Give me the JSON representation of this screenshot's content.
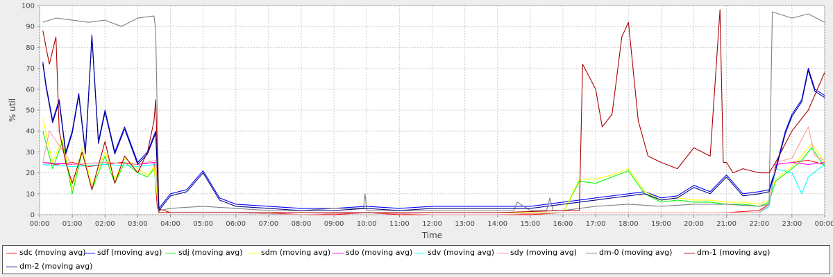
{
  "chart_data": {
    "type": "line",
    "title": "",
    "xlabel": "Time",
    "ylabel": "% util",
    "xlim": [
      0,
      24
    ],
    "ylim": [
      0,
      100
    ],
    "yticks": [
      0,
      10,
      20,
      30,
      40,
      50,
      60,
      70,
      80,
      90,
      100
    ],
    "xticks": [
      "00:00",
      "01:00",
      "02:00",
      "03:00",
      "04:00",
      "05:00",
      "06:00",
      "07:00",
      "08:00",
      "09:00",
      "10:00",
      "11:00",
      "12:00",
      "13:00",
      "14:00",
      "15:00",
      "16:00",
      "17:00",
      "18:00",
      "19:00",
      "20:00",
      "21:00",
      "22:00",
      "23:00",
      "00:00"
    ],
    "grid": true,
    "legend_position": "bottom",
    "series": [
      {
        "name": "sdc (moving avg)",
        "color": "#ff0000",
        "x": [
          0.1,
          0.5,
          1,
          1.5,
          2,
          2.5,
          3,
          3.5,
          3.6,
          4,
          5,
          6,
          7,
          8,
          9,
          10,
          11,
          12,
          13,
          14,
          15,
          16,
          16.5,
          17,
          18,
          19,
          20,
          21,
          22,
          22.3,
          22.5,
          23,
          23.5,
          24
        ],
        "y": [
          25,
          24,
          25,
          23,
          24,
          25,
          24,
          25,
          3,
          1,
          1,
          1,
          1,
          0,
          0,
          1,
          0,
          0,
          0,
          0,
          0,
          1,
          1,
          1,
          1,
          1,
          1,
          1,
          2,
          5,
          24,
          25,
          26,
          24
        ]
      },
      {
        "name": "sdf (moving avg)",
        "color": "#0000ff",
        "x": [
          0.1,
          0.2,
          0.4,
          0.6,
          0.8,
          1,
          1.2,
          1.4,
          1.6,
          1.8,
          2,
          2.3,
          2.6,
          3,
          3.3,
          3.55,
          3.65,
          4,
          4.5,
          5,
          5.5,
          6,
          7,
          8,
          9,
          10,
          11,
          12,
          13,
          14,
          15,
          16,
          16.5,
          17,
          17.5,
          18,
          18.5,
          19,
          19.5,
          20,
          20.5,
          21,
          21.5,
          22,
          22.3,
          22.5,
          22.8,
          23,
          23.3,
          23.5,
          23.7,
          24
        ],
        "y": [
          73,
          62,
          45,
          55,
          30,
          40,
          58,
          30,
          86,
          35,
          50,
          30,
          42,
          25,
          30,
          40,
          3,
          10,
          12,
          21,
          8,
          5,
          4,
          3,
          3,
          4,
          3,
          4,
          4,
          4,
          4,
          6,
          7,
          8,
          9,
          10,
          11,
          8,
          9,
          14,
          11,
          19,
          10,
          11,
          12,
          22,
          40,
          48,
          55,
          70,
          60,
          57
        ]
      },
      {
        "name": "sdj (moving avg)",
        "color": "#00ff00",
        "x": [
          0.1,
          0.4,
          0.7,
          1,
          1.3,
          1.6,
          2,
          2.3,
          2.6,
          3,
          3.3,
          3.5,
          3.65,
          4,
          5,
          6,
          7,
          8,
          9,
          10,
          11,
          12,
          13,
          14,
          15,
          16,
          16.5,
          17,
          17.5,
          18,
          18.5,
          19,
          19.5,
          20,
          20.5,
          21,
          21.5,
          22,
          22.3,
          22.5,
          23,
          23.3,
          23.6,
          24
        ],
        "y": [
          40,
          22,
          35,
          10,
          30,
          12,
          28,
          15,
          25,
          20,
          18,
          22,
          1,
          1,
          1,
          1,
          1,
          1,
          1,
          1,
          1,
          1,
          1,
          1,
          1,
          1,
          16,
          15,
          18,
          21,
          10,
          6,
          7,
          6,
          6,
          5,
          5,
          4,
          6,
          16,
          22,
          26,
          32,
          23
        ]
      },
      {
        "name": "sdm (moving avg)",
        "color": "#ffff00",
        "x": [
          0.1,
          0.4,
          0.7,
          1,
          1.3,
          1.6,
          2,
          2.3,
          2.6,
          3,
          3.3,
          3.5,
          3.65,
          4,
          5,
          6,
          7,
          8,
          9,
          10,
          11,
          12,
          13,
          14,
          15,
          16,
          16.5,
          17,
          17.5,
          18,
          18.5,
          19,
          19.5,
          20,
          20.5,
          21,
          21.5,
          22,
          22.3,
          22.5,
          23,
          23.3,
          23.6,
          24
        ],
        "y": [
          46,
          25,
          36,
          12,
          32,
          14,
          30,
          17,
          27,
          22,
          19,
          23,
          1,
          1,
          1,
          1,
          1,
          1,
          1,
          1,
          1,
          1,
          1,
          1,
          1,
          1,
          17,
          17,
          19,
          22,
          11,
          7,
          8,
          7,
          7,
          6,
          6,
          5,
          7,
          17,
          23,
          28,
          34,
          25
        ]
      },
      {
        "name": "sdo (moving avg)",
        "color": "#ff00ff",
        "x": [
          0.1,
          1,
          2,
          3,
          3.55,
          3.65,
          4,
          6,
          8,
          10,
          12,
          14,
          16,
          17,
          18,
          19,
          20,
          21,
          22,
          22.3,
          22.5,
          23,
          23.5,
          24
        ],
        "y": [
          25,
          24,
          25,
          24,
          25,
          1,
          1,
          1,
          0,
          1,
          0,
          0,
          1,
          1,
          1,
          1,
          1,
          1,
          1,
          4,
          24,
          25,
          24,
          25
        ]
      },
      {
        "name": "sdv (moving avg)",
        "color": "#00ffff",
        "x": [
          0.1,
          1,
          2,
          3,
          3.55,
          3.65,
          4,
          6,
          8,
          10,
          12,
          14,
          16,
          17,
          18,
          19,
          20,
          21,
          22,
          22.3,
          22.5,
          23,
          23.3,
          23.5,
          24
        ],
        "y": [
          24,
          23,
          24,
          23,
          24,
          1,
          1,
          1,
          0,
          1,
          0,
          0,
          1,
          1,
          1,
          1,
          1,
          1,
          1,
          4,
          22,
          20,
          10,
          18,
          24
        ]
      },
      {
        "name": "sdy (moving avg)",
        "color": "#ff9999",
        "x": [
          0.1,
          0.3,
          1,
          2,
          3,
          3.55,
          3.65,
          4,
          6,
          8,
          10,
          12,
          14,
          16,
          17,
          18,
          19,
          20,
          21,
          22,
          22.3,
          22.5,
          23,
          23.5,
          23.7,
          24
        ],
        "y": [
          25,
          40,
          24,
          25,
          24,
          26,
          1,
          1,
          1,
          0,
          1,
          0,
          0,
          1,
          1,
          1,
          1,
          1,
          1,
          1,
          5,
          25,
          27,
          42,
          28,
          26
        ]
      },
      {
        "name": "dm-0 (moving avg)",
        "color": "#808080",
        "x": [
          0.1,
          0.5,
          1,
          1.5,
          2,
          2.5,
          3,
          3.5,
          3.55,
          3.65,
          4,
          5,
          6,
          7,
          8,
          9,
          9.9,
          9.95,
          10,
          11,
          12,
          13,
          14,
          14.5,
          14.6,
          15,
          15.5,
          15.6,
          15.7,
          16,
          16.5,
          17,
          18,
          19,
          20,
          21,
          22,
          22.3,
          22.4,
          23,
          23.5,
          24
        ],
        "y": [
          92,
          94,
          93,
          92,
          93,
          90,
          94,
          95,
          88,
          2,
          3,
          4,
          3,
          2,
          2,
          3,
          3,
          10,
          2,
          2,
          2,
          2,
          2,
          2,
          6,
          2,
          2,
          8,
          2,
          2,
          3,
          4,
          5,
          4,
          5,
          5,
          4,
          5,
          97,
          94,
          96,
          92
        ]
      },
      {
        "name": "dm-1 (moving avg)",
        "color": "#aa0000",
        "x": [
          0.1,
          0.3,
          0.5,
          0.6,
          0.8,
          1,
          1.3,
          1.6,
          2,
          2.3,
          2.6,
          3,
          3.3,
          3.5,
          3.55,
          3.65,
          4,
          6,
          8,
          10,
          12,
          14,
          16,
          16.5,
          16.6,
          17,
          17.2,
          17.5,
          17.8,
          18,
          18.3,
          18.6,
          19,
          19.5,
          20,
          20.5,
          20.8,
          20.9,
          21,
          21.2,
          21.5,
          22,
          22.3,
          22.5,
          23,
          23.5,
          24
        ],
        "y": [
          88,
          72,
          85,
          40,
          25,
          15,
          30,
          12,
          35,
          15,
          28,
          20,
          30,
          45,
          55,
          1,
          1,
          1,
          1,
          1,
          1,
          1,
          2,
          2,
          72,
          60,
          42,
          48,
          85,
          92,
          45,
          28,
          25,
          22,
          32,
          28,
          98,
          25,
          25,
          20,
          22,
          20,
          20,
          25,
          40,
          50,
          68
        ]
      },
      {
        "name": "dm-2 (moving avg)",
        "color": "#000080",
        "x": [
          0.1,
          0.2,
          0.4,
          0.6,
          0.8,
          1,
          1.2,
          1.4,
          1.6,
          1.8,
          2,
          2.3,
          2.6,
          3,
          3.3,
          3.55,
          3.65,
          4,
          4.5,
          5,
          5.5,
          6,
          7,
          8,
          9,
          10,
          11,
          12,
          13,
          14,
          15,
          16,
          16.5,
          17,
          17.5,
          18,
          18.5,
          19,
          19.5,
          20,
          20.5,
          21,
          21.5,
          22,
          22.3,
          22.5,
          22.8,
          23,
          23.3,
          23.5,
          23.7,
          24
        ],
        "y": [
          72,
          61,
          44,
          54,
          29,
          39,
          57,
          29,
          85,
          34,
          49,
          29,
          41,
          24,
          29,
          39,
          2,
          9,
          11,
          20,
          7,
          4,
          3,
          2,
          2,
          3,
          2,
          3,
          3,
          3,
          3,
          5,
          6,
          7,
          8,
          9,
          10,
          7,
          8,
          13,
          10,
          18,
          9,
          10,
          11,
          21,
          39,
          47,
          54,
          69,
          59,
          56
        ]
      }
    ]
  }
}
